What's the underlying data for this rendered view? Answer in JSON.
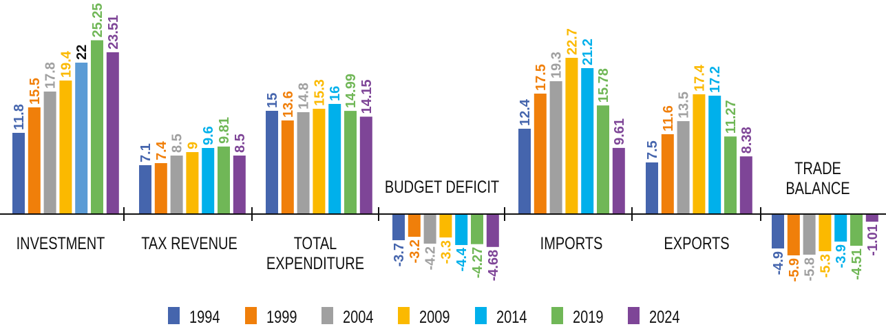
{
  "chart_data": {
    "type": "bar",
    "title": "",
    "xlabel": "",
    "ylabel": "",
    "grid": false,
    "legend_position": "bottom",
    "categories": [
      "INVESTMENT",
      "TAX REVENUE",
      "TOTAL EXPENDITURE",
      "BUDGET DEFICIT",
      "IMPORTS",
      "EXPORTS",
      "TRADE BALANCE"
    ],
    "category_labels": [
      [
        "INVESTMENT"
      ],
      [
        "TAX REVENUE"
      ],
      [
        "TOTAL",
        "EXPENDITURE"
      ],
      [
        "BUDGET DEFICIT"
      ],
      [
        "IMPORTS"
      ],
      [
        "EXPORTS"
      ],
      [
        "TRADE",
        "BALANCE"
      ]
    ],
    "series": [
      {
        "name": "1994",
        "color": "#4565AD",
        "values": [
          11.8,
          7.1,
          15,
          -3.7,
          12.4,
          7.5,
          -4.9
        ]
      },
      {
        "name": "1999",
        "color": "#F07F0A",
        "values": [
          15.5,
          7.4,
          13.6,
          -3.2,
          17.5,
          11.6,
          -5.9
        ]
      },
      {
        "name": "2004",
        "color": "#A0A0A0",
        "values": [
          17.8,
          8.5,
          14.8,
          -4.2,
          19.3,
          13.5,
          -5.8
        ]
      },
      {
        "name": "2009",
        "color": "#FBB900",
        "values": [
          19.4,
          9,
          15.3,
          -3.3,
          22.7,
          17.4,
          -5.3
        ]
      },
      {
        "name": "2014",
        "color": "#00B0EB",
        "values": [
          22,
          9.6,
          16,
          -4.4,
          21.2,
          17.2,
          -3.9
        ]
      },
      {
        "name": "2019",
        "color": "#70B757",
        "values": [
          25.25,
          9.81,
          14.99,
          -4.27,
          15.78,
          11.27,
          -4.51
        ]
      },
      {
        "name": "2024",
        "color": "#7E4597",
        "values": [
          23.51,
          8.5,
          14.15,
          -4.68,
          9.61,
          8.38,
          -1.01
        ]
      }
    ],
    "special_colors": {
      "investment_2014_bar": "#5B9BD5",
      "investment_2014_label": "#111111"
    },
    "ylim": [
      -6,
      26
    ]
  }
}
